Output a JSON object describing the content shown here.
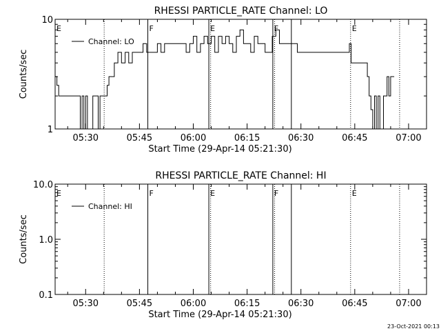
{
  "footer": {
    "timestamp": "23-Oct-2021 00:13"
  },
  "chart_data": [
    {
      "type": "line",
      "title": "RHESSI PARTICLE_RATE Channel: LO",
      "xlabel": "Start Time (29-Apr-14 05:21:30)",
      "ylabel": "Counts/sec",
      "yscale": "log",
      "ylim": [
        1,
        10
      ],
      "xlim": [
        "05:21:30",
        "07:05:00"
      ],
      "x_ticks": [
        "05:30",
        "05:45",
        "06:00",
        "06:15",
        "06:30",
        "06:45",
        "07:00"
      ],
      "y_ticks": [
        "1",
        "10"
      ],
      "legend": {
        "label": "Channel: LO",
        "position": "top-left"
      },
      "series": [
        {
          "name": "Channel: LO",
          "x": [
            "05:21:30",
            "05:22:00",
            "05:22:30",
            "05:23:00",
            "05:23:30",
            "05:24:00",
            "05:25:00",
            "05:26:00",
            "05:27:00",
            "05:28:00",
            "05:28:30",
            "05:29:00",
            "05:29:30",
            "05:30:00",
            "05:30:30",
            "05:31:00",
            "05:31:30",
            "05:32:00",
            "05:33:00",
            "05:33:30",
            "05:34:00",
            "05:34:30",
            "05:35:00",
            "05:35:30",
            "05:36:00",
            "05:36:30",
            "05:37:00",
            "05:38:00",
            "05:39:00",
            "05:40:00",
            "05:41:00",
            "05:42:00",
            "05:43:00",
            "05:44:00",
            "05:45:00",
            "05:46:00",
            "05:47:00",
            "05:48:00",
            "05:49:00",
            "05:50:00",
            "05:51:00",
            "05:52:00",
            "05:53:00",
            "05:54:00",
            "05:55:00",
            "05:56:00",
            "05:57:00",
            "05:58:00",
            "05:59:00",
            "06:00:00",
            "06:01:00",
            "06:02:00",
            "06:03:00",
            "06:04:00",
            "06:05:00",
            "06:06:00",
            "06:07:00",
            "06:08:00",
            "06:09:00",
            "06:10:00",
            "06:11:00",
            "06:12:00",
            "06:13:00",
            "06:14:00",
            "06:15:00",
            "06:16:00",
            "06:17:00",
            "06:18:00",
            "06:19:00",
            "06:20:00",
            "06:21:00",
            "06:22:00",
            "06:23:00",
            "06:24:00",
            "06:25:00",
            "06:26:00",
            "06:27:00",
            "06:28:00",
            "06:29:00",
            "06:30:00",
            "06:31:00",
            "06:32:00",
            "06:33:00",
            "06:34:00",
            "06:35:00",
            "06:36:00",
            "06:37:00",
            "06:38:00",
            "06:39:00",
            "06:40:00",
            "06:41:00",
            "06:42:00",
            "06:43:00",
            "06:43:30",
            "06:44:00",
            "06:45:00",
            "06:46:00",
            "06:47:00",
            "06:48:00",
            "06:48:30",
            "06:49:00",
            "06:49:30",
            "06:50:00",
            "06:50:30",
            "06:51:00",
            "06:51:30",
            "06:52:00",
            "06:53:00",
            "06:53:30",
            "06:54:00",
            "06:54:30",
            "06:55:00",
            "06:55:30",
            "06:56:00"
          ],
          "values": [
            3,
            2.5,
            2,
            2,
            2,
            2,
            2,
            2,
            2,
            2,
            1,
            2,
            1,
            2,
            1,
            1,
            1,
            2,
            2,
            1,
            2,
            2,
            2,
            2,
            2.5,
            3,
            3,
            4,
            5,
            4,
            5,
            4,
            5,
            5,
            5,
            6,
            5,
            5,
            5,
            6,
            5,
            6,
            6,
            6,
            6,
            6,
            6,
            5,
            6,
            7,
            5,
            6,
            7,
            6,
            7,
            5,
            7,
            6,
            7,
            6,
            5,
            7,
            8,
            6,
            6,
            5,
            7,
            6,
            6,
            5,
            5,
            7,
            8,
            6,
            6,
            6,
            6,
            6,
            5,
            5,
            5,
            5,
            5,
            5,
            5,
            5,
            5,
            5,
            5,
            5,
            5,
            5,
            5,
            6,
            4,
            4,
            4,
            4,
            4,
            3,
            2,
            1.5,
            1,
            2,
            1,
            2,
            1,
            2,
            2,
            3,
            2,
            3,
            3,
            3
          ]
        }
      ],
      "annotations": [
        {
          "label": "E",
          "x": "05:21:30",
          "style": "dotted"
        },
        {
          "label": "",
          "x": "05:35:10",
          "style": "dotted"
        },
        {
          "label": "F",
          "x": "05:47:20",
          "style": "solid"
        },
        {
          "label": "E",
          "x": "06:04:20",
          "style": "solid"
        },
        {
          "label": "",
          "x": "06:04:50",
          "style": "dotted"
        },
        {
          "label": "F",
          "x": "06:22:10",
          "style": "solid"
        },
        {
          "label": "",
          "x": "06:22:40",
          "style": "dotted"
        },
        {
          "label": "",
          "x": "06:27:20",
          "style": "solid"
        },
        {
          "label": "E",
          "x": "06:43:50",
          "style": "dotted"
        },
        {
          "label": "",
          "x": "06:57:30",
          "style": "dotted"
        }
      ]
    },
    {
      "type": "line",
      "title": "RHESSI PARTICLE_RATE Channel: HI",
      "xlabel": "Start Time (29-Apr-14 05:21:30)",
      "ylabel": "Counts/sec",
      "yscale": "log",
      "ylim": [
        0.1,
        10
      ],
      "xlim": [
        "05:21:30",
        "07:05:00"
      ],
      "x_ticks": [
        "05:30",
        "05:45",
        "06:00",
        "06:15",
        "06:30",
        "06:45",
        "07:00"
      ],
      "y_ticks": [
        "0.1",
        "1.0",
        "10.0"
      ],
      "legend": {
        "label": "Channel: HI",
        "position": "top-left"
      },
      "series": [
        {
          "name": "Channel: HI",
          "x": [],
          "values": []
        }
      ],
      "annotations": [
        {
          "label": "E",
          "x": "05:21:30",
          "style": "dotted"
        },
        {
          "label": "",
          "x": "05:35:10",
          "style": "dotted"
        },
        {
          "label": "F",
          "x": "05:47:20",
          "style": "solid"
        },
        {
          "label": "E",
          "x": "06:04:20",
          "style": "solid"
        },
        {
          "label": "",
          "x": "06:04:50",
          "style": "dotted"
        },
        {
          "label": "F",
          "x": "06:22:10",
          "style": "solid"
        },
        {
          "label": "",
          "x": "06:22:40",
          "style": "dotted"
        },
        {
          "label": "",
          "x": "06:27:20",
          "style": "solid"
        },
        {
          "label": "E",
          "x": "06:43:50",
          "style": "dotted"
        },
        {
          "label": "",
          "x": "06:57:30",
          "style": "dotted"
        }
      ]
    }
  ]
}
